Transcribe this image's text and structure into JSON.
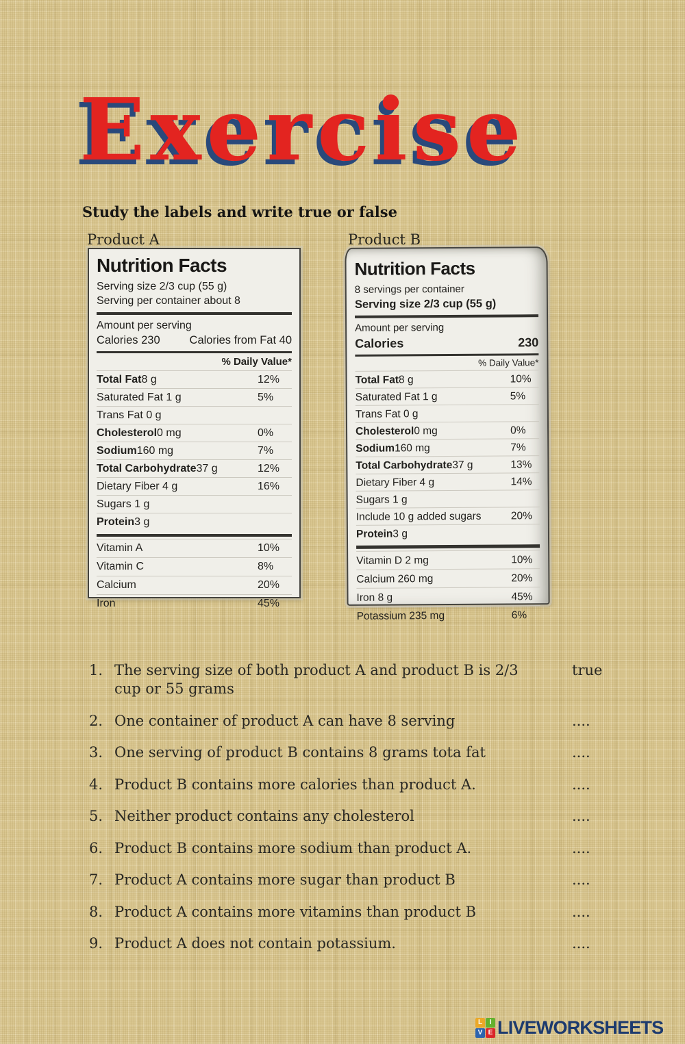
{
  "page": {
    "title": "Exercise",
    "instruction": "Study the labels and write true or false",
    "title_color": "#e32420",
    "title_shadow_color": "#29497b",
    "background_color": "#d9c690"
  },
  "product_a": {
    "heading": "Product A",
    "label": {
      "title": "Nutrition Facts",
      "serving_line1": "Serving size 2/3 cup (55 g)",
      "serving_line2": "Serving per container about 8",
      "amount_per_serving": "Amount per serving",
      "calories_left": "Calories 230",
      "calories_right": "Calories from Fat 40",
      "daily_value": "% Daily Value*",
      "rows": [
        {
          "b": "Total Fat",
          "r": " 8 g",
          "v": "12%"
        },
        {
          "b": "",
          "r": "Saturated Fat 1 g",
          "v": "5%"
        },
        {
          "b": "",
          "r": "Trans Fat 0 g",
          "v": ""
        },
        {
          "b": "Cholesterol",
          "r": " 0 mg",
          "v": "0%"
        },
        {
          "b": "Sodium",
          "r": " 160 mg",
          "v": "7%"
        },
        {
          "b": "Total Carbohydrate",
          "r": " 37 g",
          "v": "12%"
        },
        {
          "b": "",
          "r": "Dietary Fiber 4 g",
          "v": "16%"
        },
        {
          "b": "",
          "r": "Sugars 1 g",
          "v": ""
        },
        {
          "b": "Protein",
          "r": " 3 g",
          "v": ""
        }
      ],
      "vitamins": [
        {
          "name": "Vitamin A",
          "v": "10%"
        },
        {
          "name": "Vitamin C",
          "v": "8%"
        },
        {
          "name": "Calcium",
          "v": "20%"
        },
        {
          "name": "Iron",
          "v": "45%"
        }
      ]
    }
  },
  "product_b": {
    "heading": "Product B",
    "label": {
      "title": "Nutrition Facts",
      "serving_line1": "8 servings per container",
      "serving_line2": "Serving size 2/3 cup (55 g)",
      "amount_per_serving": "Amount per serving",
      "calories_left": "Calories",
      "calories_right": "230",
      "daily_value": "% Daily Value*",
      "rows": [
        {
          "b": "Total Fat",
          "r": " 8 g",
          "v": "10%"
        },
        {
          "b": "",
          "r": "Saturated Fat 1 g",
          "v": "5%"
        },
        {
          "b": "",
          "r": "Trans Fat 0 g",
          "v": ""
        },
        {
          "b": "Cholesterol",
          "r": " 0 mg",
          "v": "0%"
        },
        {
          "b": "Sodium",
          "r": " 160 mg",
          "v": "7%"
        },
        {
          "b": "Total Carbohydrate",
          "r": " 37 g",
          "v": "13%"
        },
        {
          "b": "",
          "r": "Dietary Fiber 4 g",
          "v": "14%"
        },
        {
          "b": "",
          "r": "Sugars 1 g",
          "v": ""
        },
        {
          "b": "",
          "r": "Include 10 g added sugars",
          "v": "20%"
        },
        {
          "b": "Protein",
          "r": " 3 g",
          "v": ""
        }
      ],
      "vitamins": [
        {
          "name": "Vitamin D 2 mg",
          "v": "10%"
        },
        {
          "name": "Calcium 260 mg",
          "v": "20%"
        },
        {
          "name": "Iron 8 g",
          "v": "45%"
        },
        {
          "name": "Potassium 235 mg",
          "v": "6%"
        }
      ]
    }
  },
  "questions": [
    {
      "n": "1.",
      "t": "The serving size of both product A and product B is 2/3 cup or 55 grams",
      "a": "true"
    },
    {
      "n": "2.",
      "t": "One container of product A can have 8 serving",
      "a": "...."
    },
    {
      "n": "3.",
      "t": "One serving of product B contains 8 grams tota fat",
      "a": "...."
    },
    {
      "n": "4.",
      "t": "Product B contains more calories than product A.",
      "a": "...."
    },
    {
      "n": "5.",
      "t": "Neither product contains any cholesterol",
      "a": "...."
    },
    {
      "n": "6.",
      "t": "Product B contains more sodium than product A.",
      "a": "...."
    },
    {
      "n": "7.",
      "t": "Product A contains more sugar than product B",
      "a": "...."
    },
    {
      "n": "8.",
      "t": "Product A contains more vitamins than product B",
      "a": "...."
    },
    {
      "n": "9.",
      "t": "Product A does not contain potassium.",
      "a": "...."
    }
  ],
  "footer": {
    "brand": "LIVEWORKSHEETS",
    "brand_color": "#1c3a6e",
    "logo_letters": [
      "L",
      "I",
      "V",
      "E"
    ],
    "logo_colors": {
      "L": "#eba827",
      "I": "#63b12d",
      "V": "#2d64ae",
      "E": "#da2629"
    }
  }
}
